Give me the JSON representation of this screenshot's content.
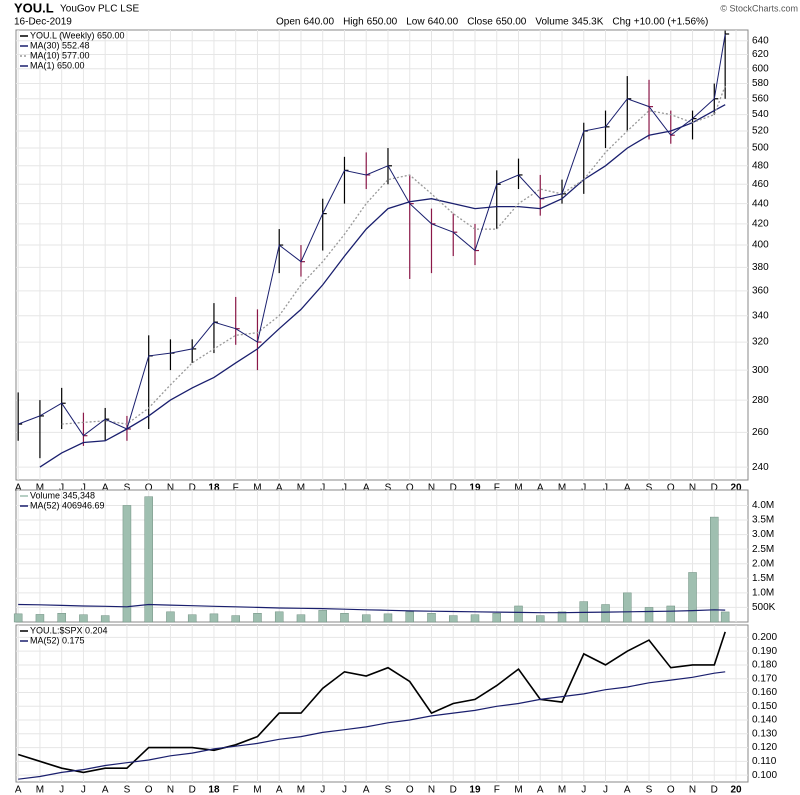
{
  "header": {
    "symbol": "YOU.L",
    "name": "YouGov PLC LSE",
    "date": "16-Dec-2019",
    "copyright": "© StockCharts.com",
    "quote": [
      {
        "label": "Open",
        "value": "640.00"
      },
      {
        "label": "High",
        "value": "650.00"
      },
      {
        "label": "Low",
        "value": "640.00"
      },
      {
        "label": "Close",
        "value": "650.00"
      },
      {
        "label": "Volume",
        "value": "345.3K"
      },
      {
        "label": "Chg",
        "value": "+10.00 (+1.56%)"
      }
    ]
  },
  "chart_data": [
    {
      "type": "ohlc",
      "name": "YOU.L (Weekly) 650.00",
      "line_name": "MA(1) 650.00",
      "line_color": "#1a1f6e",
      "log": true,
      "grid": true,
      "up_color": "#000000",
      "down_color": "#8b1848",
      "x": [
        0,
        1,
        2,
        3,
        4,
        5,
        6,
        7,
        8,
        9,
        10,
        11,
        12,
        13,
        14,
        15,
        16,
        17,
        18,
        19,
        20,
        21,
        22,
        23,
        24,
        25,
        26,
        27,
        28,
        29,
        30,
        31,
        32,
        32.5
      ],
      "high": [
        285,
        280,
        288,
        272,
        275,
        270,
        325,
        322,
        322,
        350,
        355,
        345,
        415,
        400,
        445,
        490,
        495,
        500,
        470,
        435,
        430,
        420,
        475,
        488,
        470,
        465,
        530,
        545,
        590,
        585,
        545,
        545,
        580,
        655
      ],
      "low": [
        255,
        245,
        262,
        252,
        255,
        255,
        262,
        300,
        305,
        312,
        318,
        300,
        375,
        372,
        395,
        440,
        455,
        460,
        370,
        375,
        390,
        382,
        415,
        455,
        428,
        440,
        450,
        500,
        520,
        510,
        505,
        510,
        540,
        560
      ],
      "close": [
        265,
        270,
        278,
        258,
        268,
        262,
        310,
        312,
        315,
        335,
        330,
        320,
        400,
        385,
        430,
        475,
        470,
        480,
        440,
        420,
        412,
        395,
        460,
        470,
        445,
        450,
        520,
        525,
        560,
        550,
        515,
        535,
        560,
        650
      ],
      "series": [
        {
          "name": "MA(30) 552.48",
          "color": "#1a1f6e",
          "dash": false,
          "values": [
            null,
            240,
            248,
            254,
            255,
            262,
            270,
            280,
            288,
            295,
            305,
            315,
            330,
            345,
            365,
            390,
            415,
            435,
            442,
            445,
            440,
            435,
            437,
            437,
            435,
            445,
            465,
            480,
            500,
            515,
            520,
            530,
            545,
            552.48
          ]
        },
        {
          "name": "MA(10) 577.00",
          "color": "#999999",
          "dash": true,
          "values": [
            null,
            null,
            265,
            266,
            267,
            265,
            275,
            290,
            305,
            315,
            325,
            327,
            340,
            365,
            385,
            410,
            440,
            465,
            470,
            450,
            430,
            415,
            415,
            440,
            455,
            450,
            465,
            495,
            520,
            545,
            540,
            530,
            540,
            577
          ]
        }
      ],
      "xlim": [
        -0.1,
        33.55
      ],
      "ylim": [
        233,
        656
      ],
      "yticks": [
        240,
        260,
        280,
        300,
        320,
        340,
        360,
        380,
        400,
        420,
        440,
        460,
        480,
        500,
        520,
        540,
        560,
        580,
        600,
        620,
        640
      ],
      "xticks": [
        {
          "value": 0,
          "label": "A"
        },
        {
          "value": 1,
          "label": "M"
        },
        {
          "value": 2,
          "label": "J"
        },
        {
          "value": 3,
          "label": "J"
        },
        {
          "value": 4,
          "label": "A"
        },
        {
          "value": 5,
          "label": "S"
        },
        {
          "value": 6,
          "label": "O"
        },
        {
          "value": 7,
          "label": "N"
        },
        {
          "value": 8,
          "label": "D"
        },
        {
          "value": 9,
          "label": "18"
        },
        {
          "value": 10,
          "label": "F"
        },
        {
          "value": 11,
          "label": "M"
        },
        {
          "value": 12,
          "label": "A"
        },
        {
          "value": 13,
          "label": "M"
        },
        {
          "value": 14,
          "label": "J"
        },
        {
          "value": 15,
          "label": "J"
        },
        {
          "value": 16,
          "label": "A"
        },
        {
          "value": 17,
          "label": "S"
        },
        {
          "value": 18,
          "label": "O"
        },
        {
          "value": 19,
          "label": "N"
        },
        {
          "value": 20,
          "label": "D"
        },
        {
          "value": 21,
          "label": "19"
        },
        {
          "value": 22,
          "label": "F"
        },
        {
          "value": 23,
          "label": "M"
        },
        {
          "value": 24,
          "label": "A"
        },
        {
          "value": 25,
          "label": "M"
        },
        {
          "value": 26,
          "label": "J"
        },
        {
          "value": 27,
          "label": "J"
        },
        {
          "value": 28,
          "label": "A"
        },
        {
          "value": 29,
          "label": "S"
        },
        {
          "value": 30,
          "label": "O"
        },
        {
          "value": 31,
          "label": "N"
        },
        {
          "value": 32,
          "label": "D"
        },
        {
          "value": 33,
          "label": "20"
        }
      ]
    },
    {
      "type": "volume",
      "name": "Volume 345,348",
      "color": "#9fbfb0",
      "grid": true,
      "x": [
        0,
        1,
        2,
        3,
        4,
        5,
        6,
        7,
        8,
        9,
        10,
        11,
        12,
        13,
        14,
        15,
        16,
        17,
        18,
        19,
        20,
        21,
        22,
        23,
        24,
        25,
        26,
        27,
        28,
        29,
        30,
        31,
        32,
        32.5
      ],
      "values": [
        280000,
        260000,
        300000,
        250000,
        220000,
        4000000,
        4300000,
        350000,
        250000,
        280000,
        220000,
        300000,
        350000,
        250000,
        400000,
        300000,
        250000,
        280000,
        350000,
        300000,
        220000,
        250000,
        300000,
        550000,
        220000,
        350000,
        700000,
        600000,
        1000000,
        500000,
        550000,
        1700000,
        3600000,
        345348
      ],
      "series": [
        {
          "name": "MA(52) 406946.69",
          "color": "#1a1f6e",
          "values": [
            600000,
            590000,
            570000,
            550000,
            540000,
            520000,
            600000,
            580000,
            560000,
            540000,
            520000,
            500000,
            480000,
            470000,
            460000,
            440000,
            420000,
            400000,
            380000,
            370000,
            360000,
            350000,
            340000,
            330000,
            320000,
            320000,
            330000,
            340000,
            350000,
            360000,
            370000,
            390000,
            420000,
            406946.69
          ]
        }
      ],
      "xlim": [
        -0.1,
        33.55
      ],
      "ylim": [
        0,
        4530000
      ],
      "yticks": [
        {
          "value": 500000,
          "label": "500K"
        },
        {
          "value": 1000000,
          "label": "1.0M"
        },
        {
          "value": 1500000,
          "label": "1.5M"
        },
        {
          "value": 2000000,
          "label": "2.0M"
        },
        {
          "value": 2500000,
          "label": "2.5M"
        },
        {
          "value": 3000000,
          "label": "3.0M"
        },
        {
          "value": 3500000,
          "label": "3.5M"
        },
        {
          "value": 4000000,
          "label": "4.0M"
        }
      ]
    },
    {
      "type": "line",
      "name": "YOU.L:$SPX 0.204",
      "color": "#000000",
      "grid": true,
      "x": [
        0,
        1,
        2,
        3,
        4,
        5,
        6,
        7,
        8,
        9,
        10,
        11,
        12,
        13,
        14,
        15,
        16,
        17,
        18,
        19,
        20,
        21,
        22,
        23,
        24,
        25,
        26,
        27,
        28,
        29,
        30,
        31,
        32,
        32.5
      ],
      "values": [
        0.115,
        0.11,
        0.105,
        0.102,
        0.105,
        0.105,
        0.12,
        0.12,
        0.12,
        0.118,
        0.122,
        0.128,
        0.145,
        0.145,
        0.163,
        0.175,
        0.172,
        0.178,
        0.168,
        0.145,
        0.152,
        0.155,
        0.165,
        0.177,
        0.155,
        0.153,
        0.188,
        0.18,
        0.19,
        0.198,
        0.178,
        0.18,
        0.18,
        0.204
      ],
      "series": [
        {
          "name": "MA(52) 0.175",
          "color": "#1a1f6e",
          "values": [
            0.097,
            0.099,
            0.102,
            0.104,
            0.107,
            0.109,
            0.111,
            0.114,
            0.116,
            0.119,
            0.121,
            0.123,
            0.126,
            0.128,
            0.131,
            0.133,
            0.135,
            0.138,
            0.14,
            0.143,
            0.145,
            0.147,
            0.15,
            0.152,
            0.155,
            0.157,
            0.159,
            0.162,
            0.164,
            0.167,
            0.169,
            0.171,
            0.174,
            0.175
          ]
        }
      ],
      "xlim": [
        -0.1,
        33.55
      ],
      "ylim": [
        0.095,
        0.209
      ],
      "yticks": [
        {
          "value": 0.1,
          "label": "0.100"
        },
        {
          "value": 0.11,
          "label": "0.110"
        },
        {
          "value": 0.12,
          "label": "0.120"
        },
        {
          "value": 0.13,
          "label": "0.130"
        },
        {
          "value": 0.14,
          "label": "0.140"
        },
        {
          "value": 0.15,
          "label": "0.150"
        },
        {
          "value": 0.16,
          "label": "0.160"
        },
        {
          "value": 0.17,
          "label": "0.170"
        },
        {
          "value": 0.18,
          "label": "0.180"
        },
        {
          "value": 0.19,
          "label": "0.190"
        },
        {
          "value": 0.2,
          "label": "0.200"
        }
      ]
    }
  ]
}
